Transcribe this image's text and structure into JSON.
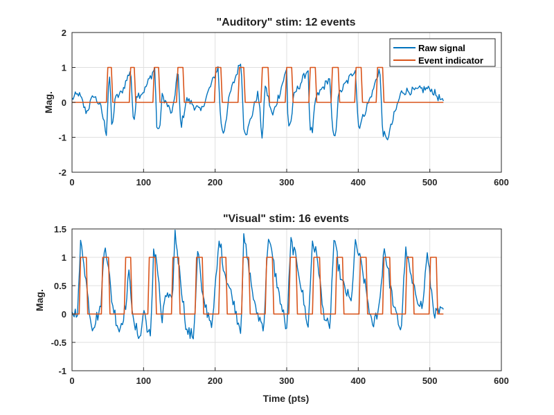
{
  "chart_data": [
    {
      "type": "line",
      "title": "\"Auditory\" stim: 12 events",
      "xlabel": "",
      "ylabel": "Mag.",
      "xlim": [
        0,
        600
      ],
      "ylim": [
        -2,
        2
      ],
      "xticks": [
        0,
        100,
        200,
        300,
        400,
        500,
        600
      ],
      "xtick_labels": [
        "0",
        "100",
        "200",
        "300",
        "400",
        "500",
        "600"
      ],
      "yticks": [
        -2,
        -1,
        0,
        1,
        2
      ],
      "ytick_labels": [
        "-2",
        "-1",
        "0",
        "1",
        "2"
      ],
      "grid": true,
      "legend": {
        "show": true,
        "location": "top-right",
        "entries": [
          "Raw signal",
          "Event indicator"
        ]
      },
      "event_count": 12,
      "series": [
        {
          "name": "Raw signal",
          "color": "#0072BD",
          "n_points": 520,
          "approx_samples": {
            "x": [
              0,
              10,
              20,
              30,
              40,
              48,
              52,
              56,
              60,
              70,
              82,
              86,
              90,
              100,
              116,
              118,
              122,
              126,
              140,
              148,
              152,
              160,
              180,
              204,
              208,
              212,
              220,
              236,
              240,
              244,
              260,
              266,
              270,
              280,
              300,
              302,
              306,
              310,
              330,
              332,
              336,
              340,
              360,
              364,
              368,
              372,
              396,
              400,
              404,
              420,
              430,
              434,
              440,
              460,
              480,
              500,
              519
            ],
            "y": [
              0.1,
              0.25,
              -0.3,
              0.2,
              -0.1,
              -0.9,
              0.95,
              -0.85,
              0.1,
              0.3,
              0.95,
              -0.7,
              0.2,
              0.3,
              1.0,
              -0.65,
              -0.85,
              0.2,
              -0.35,
              0.95,
              -0.75,
              0.1,
              -0.25,
              1.0,
              -0.6,
              -0.9,
              0.2,
              1.2,
              -0.7,
              -0.9,
              0.3,
              -1.1,
              0.5,
              -0.4,
              0.95,
              -0.7,
              -0.55,
              0.2,
              0.95,
              -0.7,
              -0.9,
              0.1,
              0.7,
              -0.85,
              -1.05,
              0.2,
              0.95,
              -0.7,
              -0.55,
              0.3,
              1.0,
              -0.85,
              -1.1,
              0.3,
              0.35,
              0.4,
              0.0
            ]
          }
        },
        {
          "name": "Event indicator",
          "color": "#D95319",
          "kind": "pulse",
          "pulses": [
            [
              50,
              55
            ],
            [
              82,
              87
            ],
            [
              115,
              121
            ],
            [
              148,
              155
            ],
            [
              201,
              208
            ],
            [
              234,
              240
            ],
            [
              266,
              274
            ],
            [
              300,
              307
            ],
            [
              333,
              340
            ],
            [
              364,
              372
            ],
            [
              397,
              404
            ],
            [
              427,
              434
            ]
          ]
        }
      ]
    },
    {
      "type": "line",
      "title": "\"Visual\" stim: 16 events",
      "xlabel": "Time (pts)",
      "ylabel": "Mag.",
      "xlim": [
        0,
        600
      ],
      "ylim": [
        -1,
        1.5
      ],
      "xticks": [
        0,
        100,
        200,
        300,
        400,
        500,
        600
      ],
      "xtick_labels": [
        "0",
        "100",
        "200",
        "300",
        "400",
        "500",
        "600"
      ],
      "yticks": [
        -1,
        -0.5,
        0,
        0.5,
        1,
        1.5
      ],
      "ytick_labels": [
        "-1",
        "-0.5",
        "0",
        "0.5",
        "1",
        "1.5"
      ],
      "grid": true,
      "legend": {
        "show": false
      },
      "event_count": 16,
      "series": [
        {
          "name": "Raw signal",
          "color": "#0072BD",
          "n_points": 520,
          "approx_samples": {
            "x": [
              0,
              8,
              12,
              16,
              22,
              28,
              40,
              46,
              50,
              56,
              66,
              76,
              80,
              86,
              96,
              100,
              106,
              110,
              114,
              118,
              126,
              130,
              140,
              144,
              150,
              160,
              170,
              176,
              182,
              196,
              206,
              212,
              226,
              236,
              240,
              246,
              256,
              268,
              274,
              290,
              300,
              306,
              316,
              330,
              336,
              344,
              350,
              360,
              366,
              376,
              390,
              396,
              404,
              420,
              430,
              436,
              450,
              460,
              466,
              476,
              490,
              496,
              506,
              519
            ],
            "y": [
              0.0,
              0.05,
              1.25,
              1.0,
              0.3,
              -0.25,
              0.1,
              1.3,
              0.9,
              0.2,
              -0.3,
              0.2,
              0.8,
              -0.2,
              -0.4,
              0.1,
              -0.3,
              -0.45,
              1.15,
              1.0,
              -0.2,
              0.35,
              0.2,
              1.45,
              0.8,
              -0.3,
              -0.4,
              1.2,
              0.3,
              -0.2,
              1.35,
              0.8,
              0.2,
              -0.3,
              1.35,
              0.9,
              0.1,
              -0.25,
              1.4,
              0.3,
              -0.3,
              1.3,
              0.8,
              -0.25,
              1.3,
              0.9,
              0.1,
              -0.3,
              1.3,
              0.6,
              0.2,
              1.25,
              0.9,
              -0.25,
              0.2,
              1.2,
              0.1,
              -0.3,
              1.15,
              0.5,
              0.1,
              1.1,
              0.0,
              0.05
            ]
          }
        },
        {
          "name": "Event indicator",
          "color": "#D95319",
          "kind": "pulse",
          "pulses": [
            [
              12,
              20
            ],
            [
              43,
              51
            ],
            [
              75,
              82
            ],
            [
              108,
              116
            ],
            [
              141,
              149
            ],
            [
              174,
              182
            ],
            [
              207,
              215
            ],
            [
              239,
              247
            ],
            [
              272,
              280
            ],
            [
              305,
              313
            ],
            [
              338,
              346
            ],
            [
              370,
              378
            ],
            [
              403,
              411
            ],
            [
              436,
              444
            ],
            [
              468,
              476
            ],
            [
              501,
              509
            ]
          ]
        }
      ]
    }
  ]
}
